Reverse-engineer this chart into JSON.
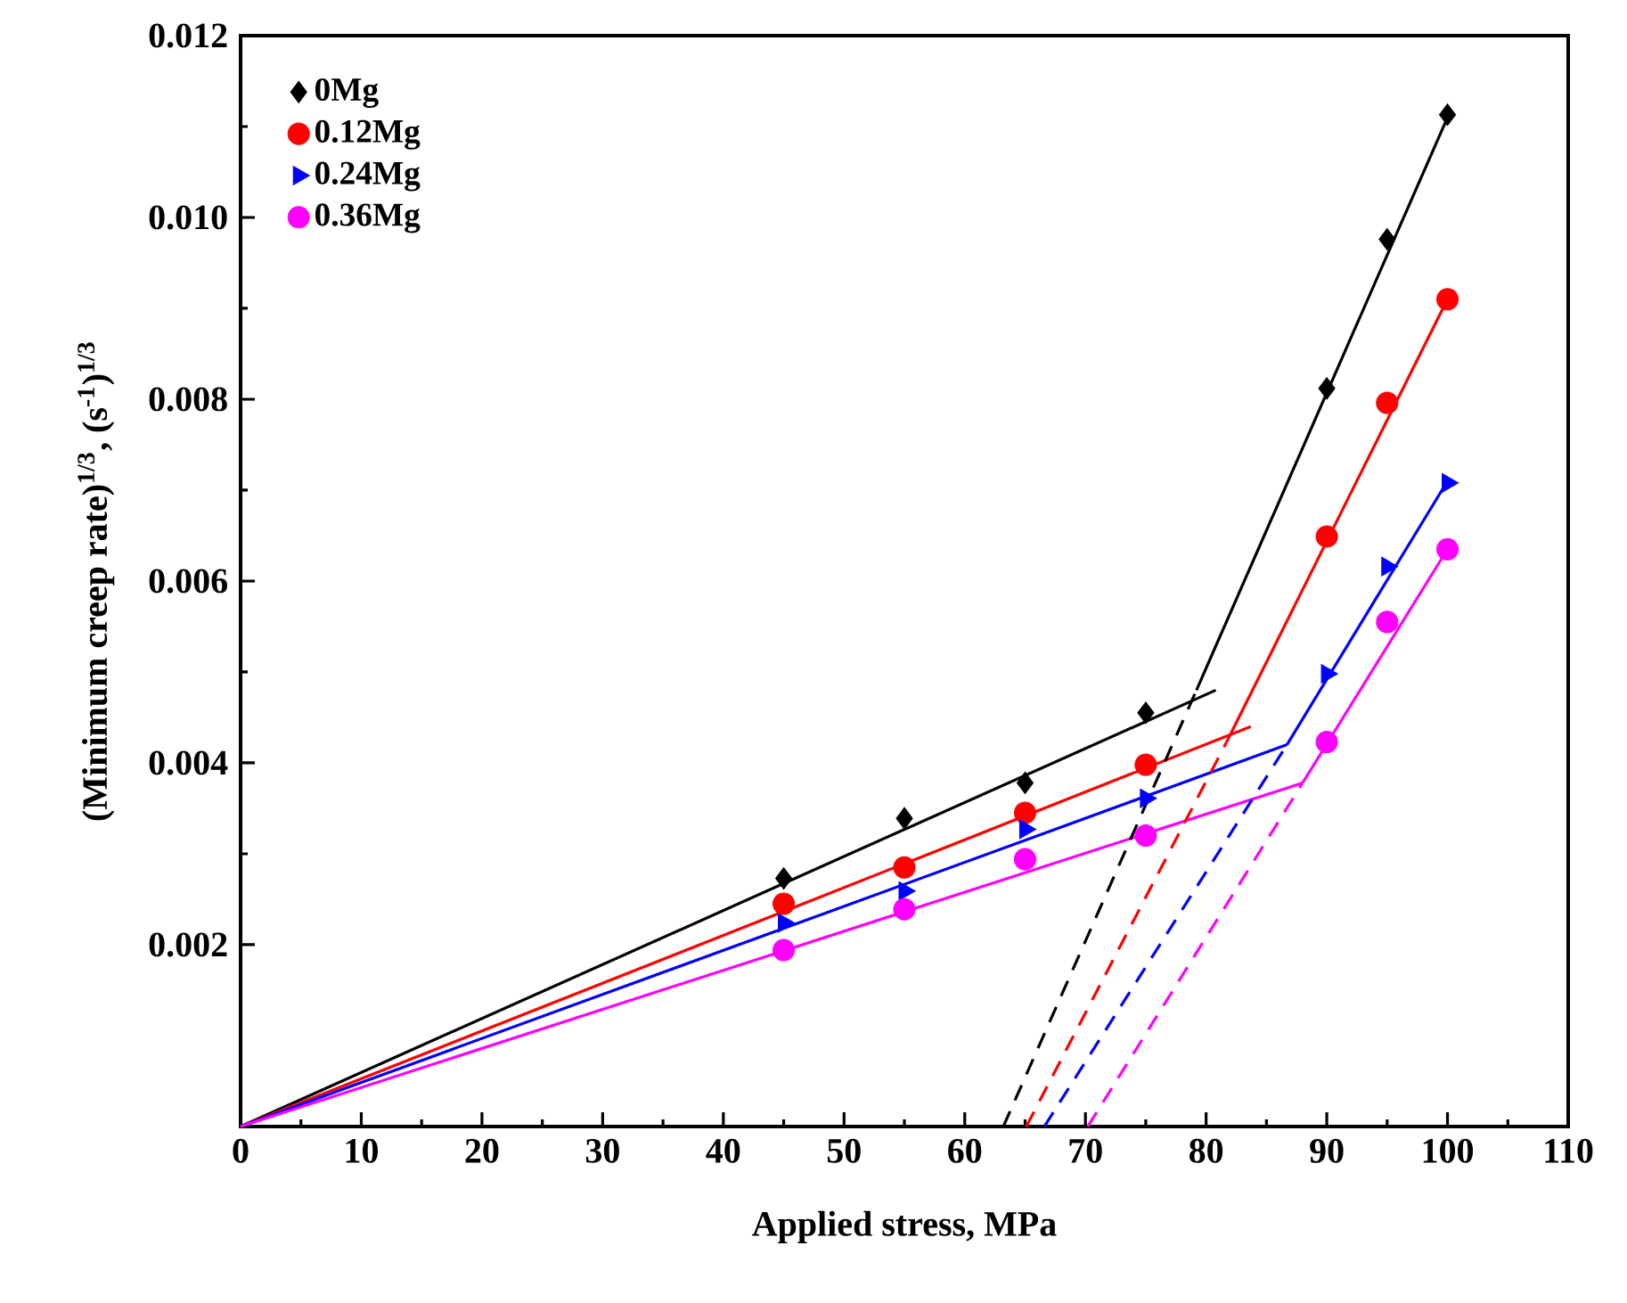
{
  "chart_data": {
    "type": "scatter",
    "xlabel": "Applied stress, MPa",
    "ylabel": "(Minimum creep rate)$^{1/3}$, (s$^{-1}$)$^{1/3}$",
    "xlim": [
      0,
      110
    ],
    "ylim": [
      0,
      0.012
    ],
    "xticks": [
      0,
      10,
      20,
      30,
      40,
      50,
      60,
      70,
      80,
      90,
      100,
      110
    ],
    "yticks": [
      0.002,
      0.004,
      0.006,
      0.008,
      {
        "value": 0.01,
        "label": "0.010"
      },
      0.012
    ],
    "legend": "top left",
    "series": [
      {
        "name": "0Mg",
        "color": "#000000",
        "marker": "diamond",
        "x": [
          45,
          55,
          65,
          75,
          90,
          95,
          100
        ],
        "values": [
          0.00273,
          0.00339,
          0.00378,
          0.00455,
          0.00812,
          0.00976,
          0.01113
        ]
      },
      {
        "name": "0.12Mg",
        "color": "#ff0000",
        "marker": "circle",
        "x": [
          45,
          55,
          65,
          75,
          90,
          95,
          100
        ],
        "values": [
          0.00245,
          0.00285,
          0.00345,
          0.00398,
          0.00649,
          0.00796,
          0.0091
        ]
      },
      {
        "name": "0.24Mg",
        "color": "#0000ff",
        "marker": "triangle",
        "x": [
          45,
          55,
          65,
          75,
          90,
          95,
          100
        ],
        "values": [
          0.00224,
          0.00259,
          0.00327,
          0.00361,
          0.00498,
          0.00616,
          0.00708
        ]
      },
      {
        "name": "0.36Mg",
        "color": "#ff00ff",
        "marker": "circle",
        "x": [
          45,
          55,
          65,
          75,
          90,
          95,
          100
        ],
        "values": [
          0.00194,
          0.00239,
          0.00294,
          0.0032,
          0.00423,
          0.00555,
          0.00635
        ]
      },
      {
        "type": "line",
        "color": "#000000",
        "marker": "none",
        "line_style": "solid",
        "x": [
          0,
          80.8
        ],
        "values": [
          0,
          0.0048
        ]
      },
      {
        "type": "line",
        "color": "#ff0000",
        "marker": "none",
        "line_style": "solid",
        "x": [
          0,
          83.7
        ],
        "values": [
          0,
          0.0044
        ]
      },
      {
        "type": "line",
        "color": "#0000ff",
        "marker": "none",
        "line_style": "solid",
        "x": [
          0,
          86.7
        ],
        "values": [
          0,
          0.0042
        ]
      },
      {
        "type": "line",
        "color": "#ff00ff",
        "marker": "none",
        "line_style": "solid",
        "x": [
          0,
          88.0
        ],
        "values": [
          0,
          0.00378
        ]
      },
      {
        "type": "line",
        "color": "#000000",
        "marker": "none",
        "line_style": "solid",
        "x": [
          79.2,
          100
        ],
        "values": [
          0.0048,
          0.0111
        ]
      },
      {
        "type": "line",
        "color": "#ff0000",
        "marker": "none",
        "line_style": "solid",
        "x": [
          81.7,
          100
        ],
        "values": [
          0.00423,
          0.0091
        ]
      },
      {
        "type": "line",
        "color": "#0000ff",
        "marker": "none",
        "line_style": "solid",
        "x": [
          86.7,
          100
        ],
        "values": [
          0.0042,
          0.0071
        ]
      },
      {
        "type": "line",
        "color": "#ff00ff",
        "marker": "none",
        "line_style": "solid",
        "x": [
          88.0,
          100
        ],
        "values": [
          0.00378,
          0.00635
        ]
      },
      {
        "type": "line",
        "color": "#000000",
        "marker": "none",
        "line_style": "dashed",
        "x": [
          63.2,
          79.2
        ],
        "values": [
          0,
          0.0048
        ]
      },
      {
        "type": "line",
        "color": "#ff0000",
        "marker": "none",
        "line_style": "dashed",
        "x": [
          65.1,
          81.7
        ],
        "values": [
          0,
          0.00423
        ]
      },
      {
        "type": "line",
        "color": "#0000ff",
        "marker": "none",
        "line_style": "dashed",
        "x": [
          66.6,
          86.7
        ],
        "values": [
          0,
          0.0042
        ]
      },
      {
        "type": "line",
        "color": "#ff00ff",
        "marker": "none",
        "line_style": "dashed",
        "x": [
          70.2,
          88.0
        ],
        "values": [
          0,
          0.00378
        ]
      }
    ]
  }
}
